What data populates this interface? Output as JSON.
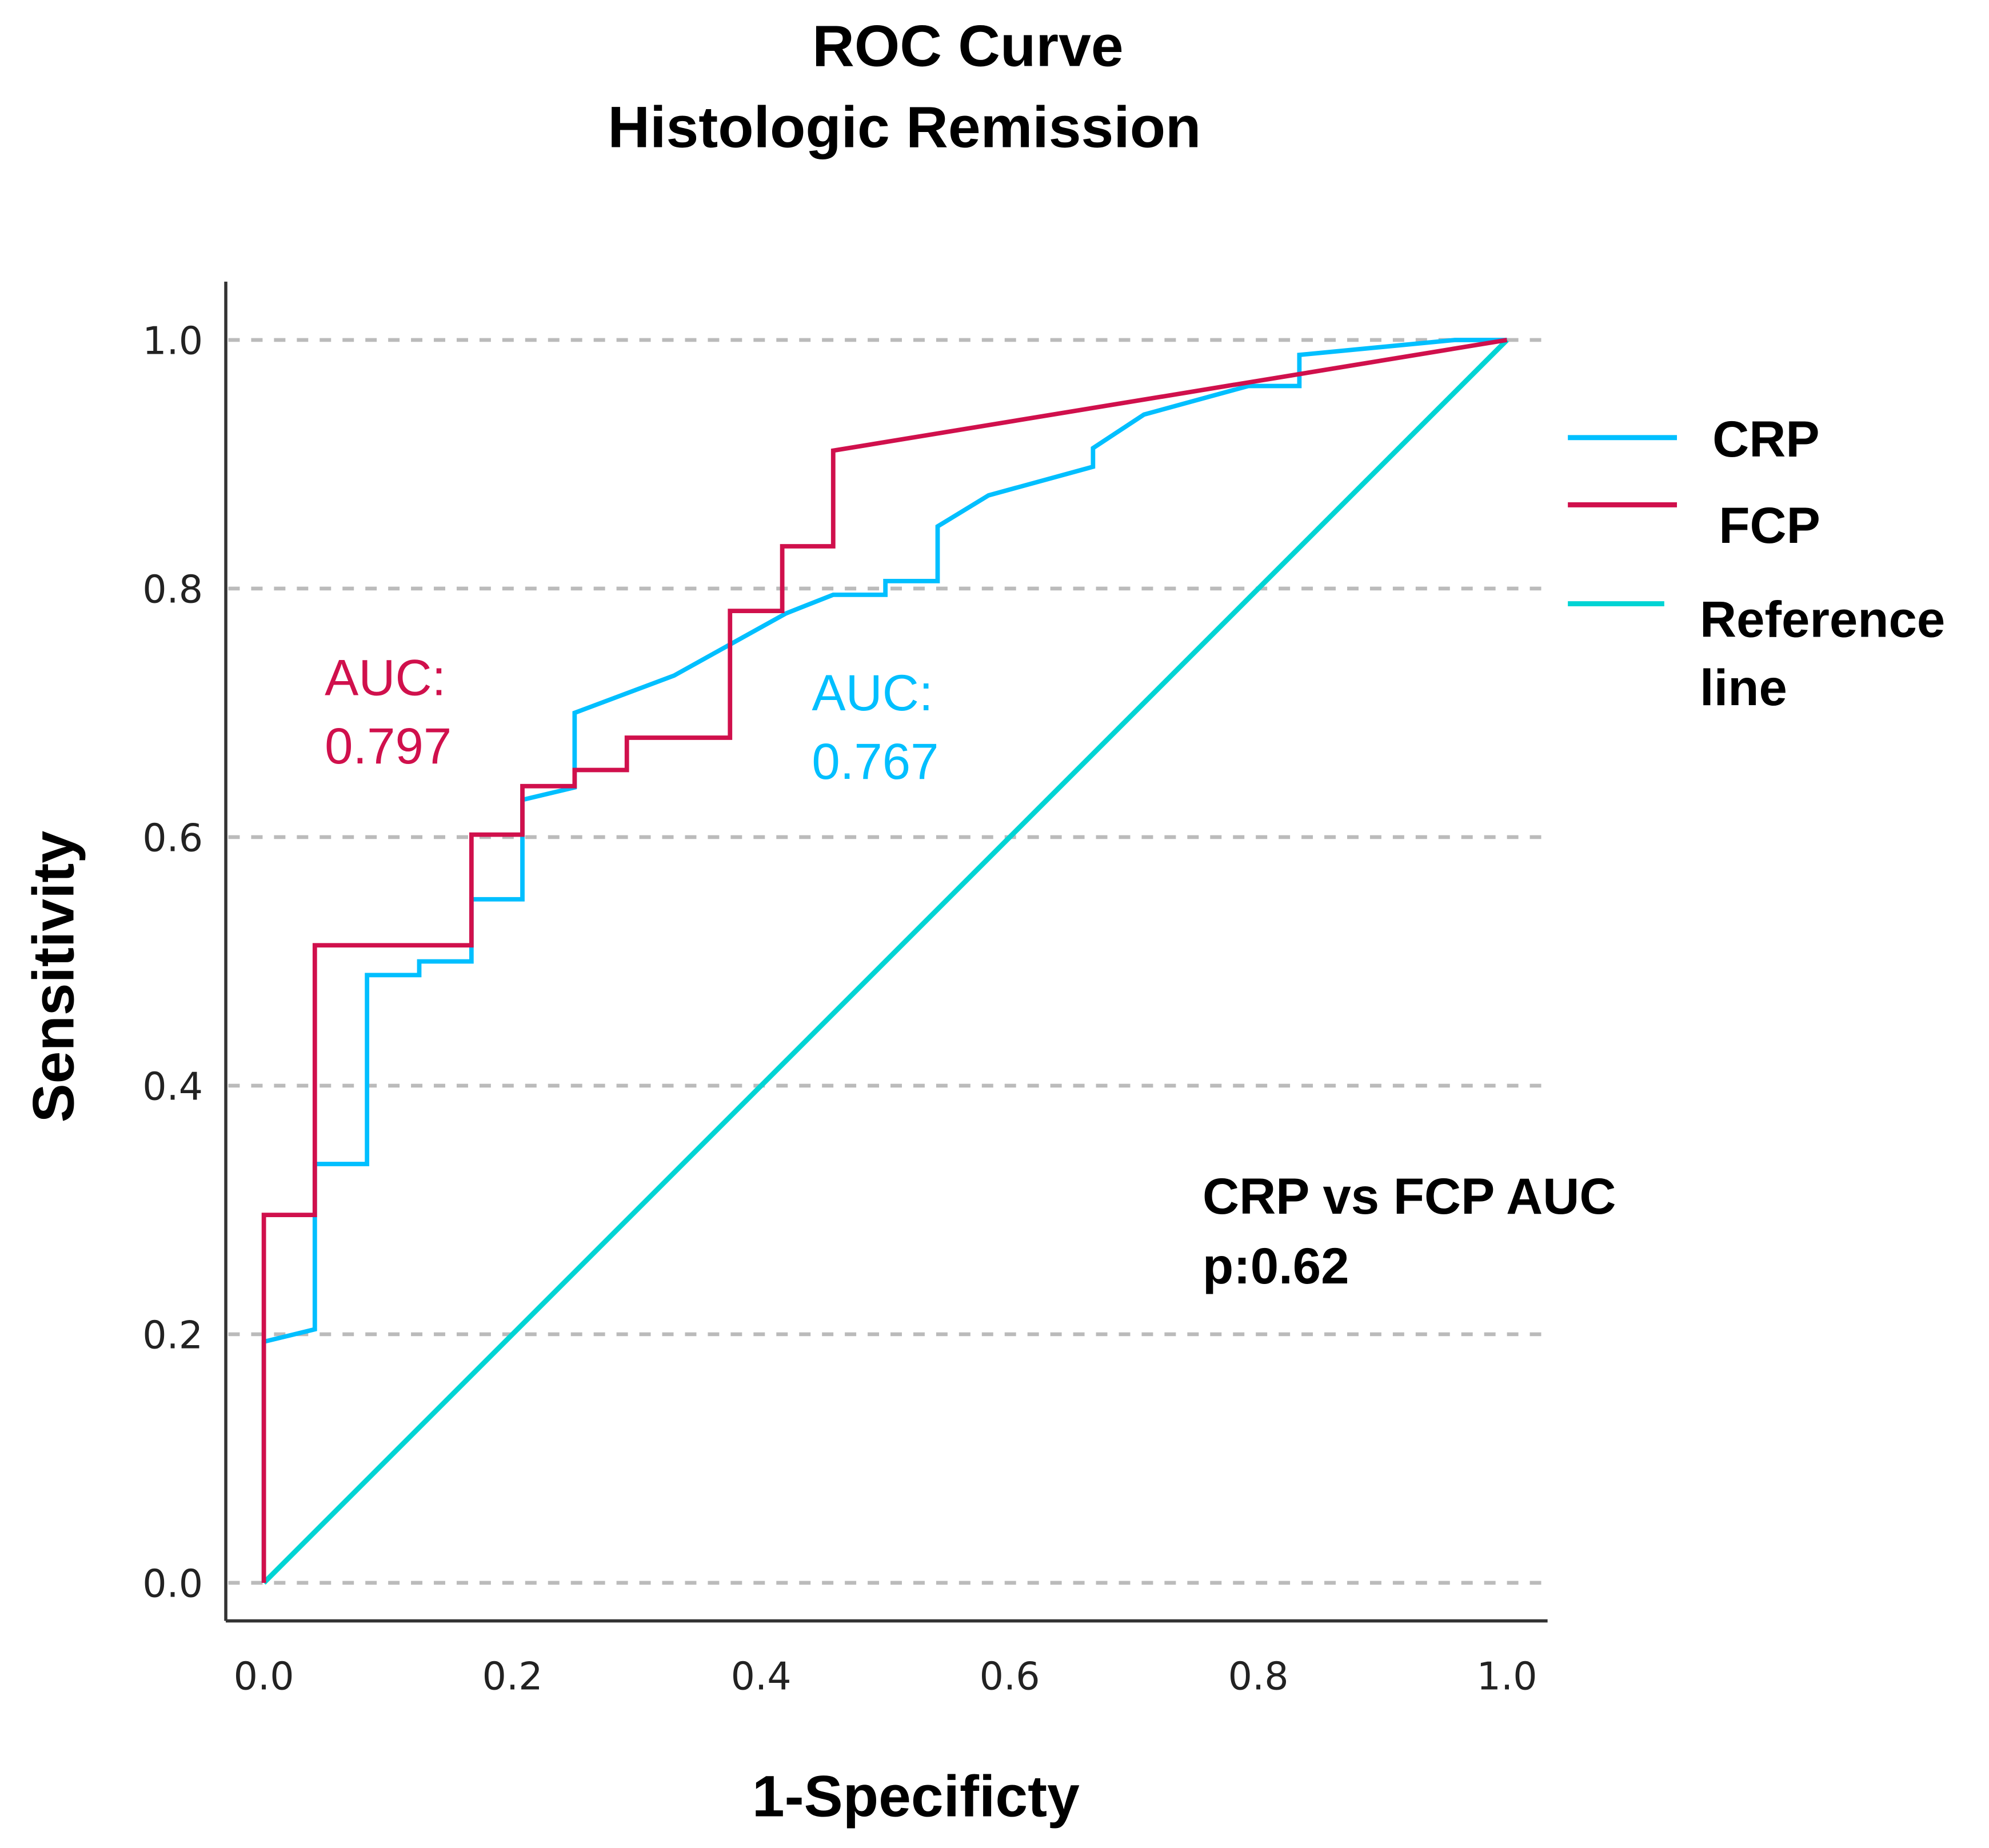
{
  "chart_data": {
    "type": "line",
    "title": [
      "ROC Curve",
      "Histologic Remission"
    ],
    "xlabel": "1-Specificty",
    "ylabel": "Sensitivity",
    "xlim": [
      0,
      1
    ],
    "ylim": [
      0,
      1
    ],
    "xticks": [
      "0.0",
      "0.2",
      "0.4",
      "0.6",
      "0.8",
      "1.0"
    ],
    "yticks": [
      "0.0",
      "0.2",
      "0.4",
      "0.6",
      "0.8",
      "1.0"
    ],
    "grid": "horizontal dashed",
    "legend_position": "right",
    "series": [
      {
        "name": "CRP",
        "color": "#00BFFF",
        "x": [
          0,
          0,
          0.041,
          0.041,
          0.083,
          0.083,
          0.125,
          0.125,
          0.167,
          0.167,
          0.208,
          0.208,
          0.25,
          0.25,
          0.33,
          0.42,
          0.458,
          0.5,
          0.5,
          0.542,
          0.542,
          0.583,
          0.667,
          0.667,
          0.708,
          0.792,
          0.833,
          0.833,
          0.958,
          1
        ],
        "y": [
          0,
          0.194,
          0.204,
          0.337,
          0.337,
          0.489,
          0.489,
          0.5,
          0.5,
          0.55,
          0.55,
          0.63,
          0.64,
          0.7,
          0.73,
          0.78,
          0.795,
          0.795,
          0.806,
          0.806,
          0.85,
          0.875,
          0.898,
          0.913,
          0.94,
          0.963,
          0.963,
          0.988,
          1,
          1
        ]
      },
      {
        "name": "FCP",
        "color": "#D0104C",
        "x": [
          0,
          0,
          0.041,
          0.041,
          0.167,
          0.167,
          0.208,
          0.208,
          0.25,
          0.25,
          0.292,
          0.292,
          0.375,
          0.375,
          0.417,
          0.417,
          0.458,
          0.458,
          1
        ],
        "y": [
          0,
          0.296,
          0.296,
          0.513,
          0.513,
          0.602,
          0.602,
          0.641,
          0.641,
          0.654,
          0.654,
          0.68,
          0.68,
          0.782,
          0.782,
          0.834,
          0.834,
          0.911,
          1
        ]
      },
      {
        "name": "Reference line",
        "color": "#00D4D4",
        "x": [
          0,
          1
        ],
        "y": [
          0,
          1
        ]
      }
    ],
    "legend": [
      "CRP",
      "FCP",
      "Reference",
      "line"
    ],
    "annotations": {
      "fcp_auc_label": "AUC:",
      "fcp_auc_value": "0.797",
      "crp_auc_label": "AUC:",
      "crp_auc_value": "0.767",
      "comparison": "CRP vs FCP AUC",
      "p_value": "p:0.62"
    }
  }
}
